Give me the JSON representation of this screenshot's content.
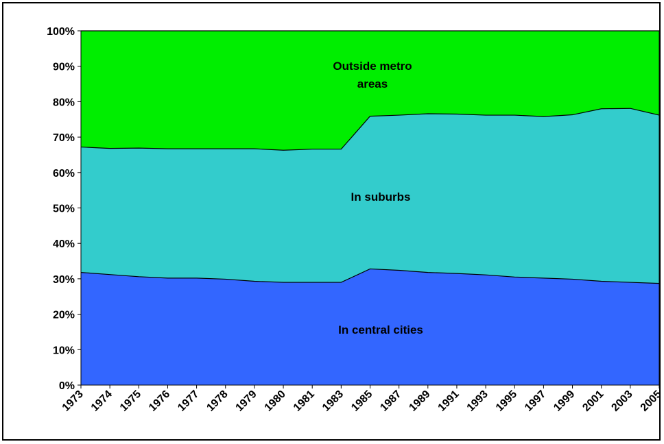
{
  "chart_data": {
    "type": "area",
    "stacked": "percent",
    "categories": [
      "1973",
      "1974",
      "1975",
      "1976",
      "1977",
      "1978",
      "1979",
      "1980",
      "1981",
      "1983",
      "1985",
      "1987",
      "1989",
      "1991",
      "1993",
      "1995",
      "1997",
      "1999",
      "2001",
      "2003",
      "2005"
    ],
    "ylim": [
      0,
      100
    ],
    "yticks": [
      "0%",
      "10%",
      "20%",
      "30%",
      "40%",
      "50%",
      "60%",
      "70%",
      "80%",
      "90%",
      "100%"
    ],
    "grid": false,
    "legend": "none",
    "series": [
      {
        "name": "In central cities",
        "color": "#3366ff",
        "values": [
          31.8,
          31.2,
          30.6,
          30.2,
          30.2,
          29.9,
          29.3,
          29.0,
          29.0,
          29.0,
          32.8,
          32.4,
          31.8,
          31.5,
          31.1,
          30.5,
          30.2,
          29.9,
          29.3,
          29.0,
          28.7
        ]
      },
      {
        "name": "In suburbs",
        "color": "#33cccc",
        "values": [
          35.4,
          35.6,
          36.3,
          36.5,
          36.5,
          36.8,
          37.4,
          37.3,
          37.6,
          37.6,
          43.1,
          43.8,
          44.8,
          45.0,
          45.1,
          45.7,
          45.6,
          46.4,
          48.7,
          49.1,
          47.5
        ]
      },
      {
        "name": "Outside metro areas",
        "color": "#00ee00",
        "values": [
          32.8,
          33.2,
          33.1,
          33.3,
          33.3,
          33.3,
          33.3,
          33.7,
          33.4,
          33.4,
          24.1,
          23.8,
          23.4,
          23.5,
          23.8,
          23.8,
          24.2,
          23.7,
          22.0,
          21.9,
          23.8
        ]
      }
    ],
    "annotations": [
      {
        "series": 0,
        "lines": [
          "In central cities"
        ]
      },
      {
        "series": 1,
        "lines": [
          "In suburbs"
        ]
      },
      {
        "series": 2,
        "lines": [
          "Outside metro",
          "areas"
        ]
      }
    ]
  }
}
